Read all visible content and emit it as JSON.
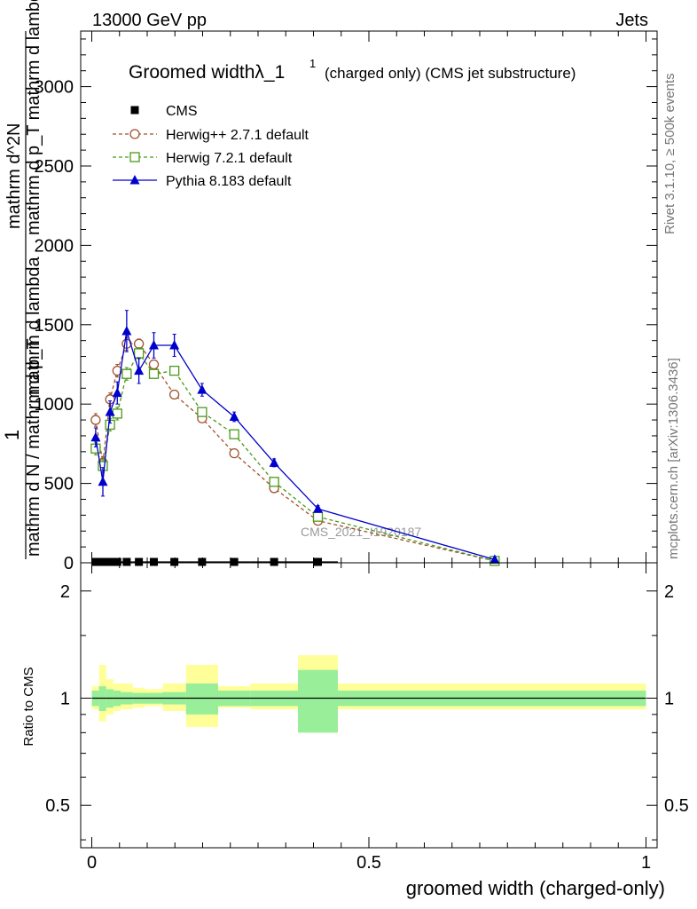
{
  "header": {
    "left": "13000 GeV pp",
    "right": "Jets"
  },
  "side_labels": {
    "rivet": "Rivet 3.1.10, ≥ 500k events",
    "mcplots": "mcplots.cern.ch [arXiv:1306.3436]"
  },
  "chart_data": [
    {
      "type": "line",
      "panel": "main",
      "title": "Groomed widthλ_1",
      "title_superscript": "1",
      "title_suffix": "(charged only) (CMS jet substructure)",
      "ylabel_numerator": "1",
      "ylabel_denominator": "mathrm d N / mathrm d p_T",
      "ylabel_denominator_suffix": "mathrm d lambda",
      "ylabel_numerator2": "mathrm d^2N",
      "ylabel_numerator2_suffix": "mathrm d p_T mathrm d lambda",
      "xlim": [
        -0.02,
        1.02
      ],
      "ylim": [
        0,
        3350
      ],
      "yticks": [
        0,
        500,
        1000,
        1500,
        2000,
        2500,
        3000
      ],
      "ytick_labels": [
        "0",
        "500",
        "1000",
        "1500",
        "2000",
        "2500",
        "3000"
      ],
      "watermark": "CMS_2021_I1920187",
      "legend": [
        "CMS",
        "Herwig++ 2.7.1 default",
        "Herwig 7.2.1 default",
        "Pythia 8.183 default"
      ],
      "series": [
        {
          "name": "CMS",
          "color": "#000000",
          "marker": "square",
          "x": [
            0.007,
            0.02,
            0.033,
            0.046,
            0.063,
            0.085,
            0.112,
            0.149,
            0.199,
            0.257,
            0.329,
            0.408
          ],
          "y": [
            0,
            0,
            0,
            0,
            0,
            0,
            0,
            0,
            0,
            0,
            0,
            0
          ],
          "xerr": [
            0.007,
            0.006,
            0.007,
            0.006,
            0.011,
            0.011,
            0.016,
            0.021,
            0.029,
            0.029,
            0.043,
            0.036
          ]
        },
        {
          "name": "Herwig++ 2.7.1 default",
          "color": "#a0522d",
          "marker": "circle",
          "dash": true,
          "x": [
            0.007,
            0.02,
            0.033,
            0.046,
            0.063,
            0.085,
            0.112,
            0.149,
            0.199,
            0.257,
            0.329,
            0.408,
            0.727
          ],
          "y": [
            900,
            630,
            1030,
            1210,
            1380,
            1380,
            1250,
            1060,
            910,
            690,
            470,
            265,
            12
          ],
          "yerr": [
            40,
            40,
            40,
            40,
            40,
            30,
            20,
            15,
            15,
            10,
            10,
            10,
            3
          ]
        },
        {
          "name": "Herwig 7.2.1 default",
          "color": "#4a9a1a",
          "marker": "square-open",
          "dash": true,
          "x": [
            0.007,
            0.02,
            0.033,
            0.046,
            0.063,
            0.085,
            0.112,
            0.149,
            0.199,
            0.257,
            0.329,
            0.408,
            0.727
          ],
          "y": [
            720,
            610,
            870,
            940,
            1190,
            1320,
            1190,
            1210,
            950,
            810,
            510,
            290,
            12
          ],
          "yerr": [
            40,
            40,
            40,
            40,
            40,
            35,
            25,
            20,
            15,
            10,
            10,
            10,
            3
          ]
        },
        {
          "name": "Pythia 8.183 default",
          "color": "#0000cc",
          "marker": "triangle",
          "dash": false,
          "x": [
            0.007,
            0.02,
            0.033,
            0.046,
            0.063,
            0.085,
            0.112,
            0.149,
            0.199,
            0.257,
            0.329,
            0.408,
            0.727
          ],
          "y": [
            790,
            510,
            950,
            1070,
            1460,
            1210,
            1370,
            1370,
            1090,
            920,
            630,
            340,
            20
          ],
          "yerr": [
            60,
            90,
            70,
            70,
            130,
            80,
            80,
            70,
            40,
            30,
            25,
            20,
            5
          ]
        }
      ]
    },
    {
      "type": "area",
      "panel": "ratio",
      "ylabel": "Ratio to CMS",
      "xlabel": "groomed width (charged-only)",
      "xlim": [
        -0.02,
        1.02
      ],
      "ylim": [
        0.38,
        2.4
      ],
      "yscale": "log",
      "yticks": [
        0.5,
        1,
        2
      ],
      "ytick_labels": [
        "0.5",
        "1",
        "2"
      ],
      "xticks": [
        0,
        0.5,
        1
      ],
      "xtick_labels": [
        "0",
        "0.5",
        "1"
      ],
      "bins": [
        {
          "lo": 0.0,
          "hi": 0.013,
          "stat": 0.05,
          "tot_up": 0.08,
          "tot_dn": 0.07
        },
        {
          "lo": 0.013,
          "hi": 0.026,
          "stat": 0.08,
          "tot_up": 0.24,
          "tot_dn": 0.14
        },
        {
          "lo": 0.026,
          "hi": 0.039,
          "stat": 0.06,
          "tot_up": 0.13,
          "tot_dn": 0.1
        },
        {
          "lo": 0.039,
          "hi": 0.052,
          "stat": 0.05,
          "tot_up": 0.1,
          "tot_dn": 0.08
        },
        {
          "lo": 0.052,
          "hi": 0.074,
          "stat": 0.04,
          "tot_up": 0.1,
          "tot_dn": 0.07
        },
        {
          "lo": 0.074,
          "hi": 0.096,
          "stat": 0.035,
          "tot_up": 0.07,
          "tot_dn": 0.06
        },
        {
          "lo": 0.096,
          "hi": 0.128,
          "stat": 0.035,
          "tot_up": 0.06,
          "tot_dn": 0.05
        },
        {
          "lo": 0.128,
          "hi": 0.17,
          "stat": 0.04,
          "tot_up": 0.1,
          "tot_dn": 0.08
        },
        {
          "lo": 0.17,
          "hi": 0.228,
          "stat": 0.1,
          "tot_up": 0.24,
          "tot_dn": 0.17
        },
        {
          "lo": 0.228,
          "hi": 0.286,
          "stat": 0.05,
          "tot_up": 0.08,
          "tot_dn": 0.06
        },
        {
          "lo": 0.286,
          "hi": 0.372,
          "stat": 0.05,
          "tot_up": 0.1,
          "tot_dn": 0.07
        },
        {
          "lo": 0.372,
          "hi": 0.444,
          "stat": 0.2,
          "tot_up": 0.32,
          "tot_dn": 0.2
        },
        {
          "lo": 0.444,
          "hi": 1.0,
          "stat": 0.05,
          "tot_up": 0.1,
          "tot_dn": 0.07
        }
      ],
      "series": [
        {
          "name": "CMS",
          "color": "#000000",
          "x": [
            0.0,
            1.0
          ],
          "y": [
            1,
            1
          ]
        }
      ]
    }
  ]
}
